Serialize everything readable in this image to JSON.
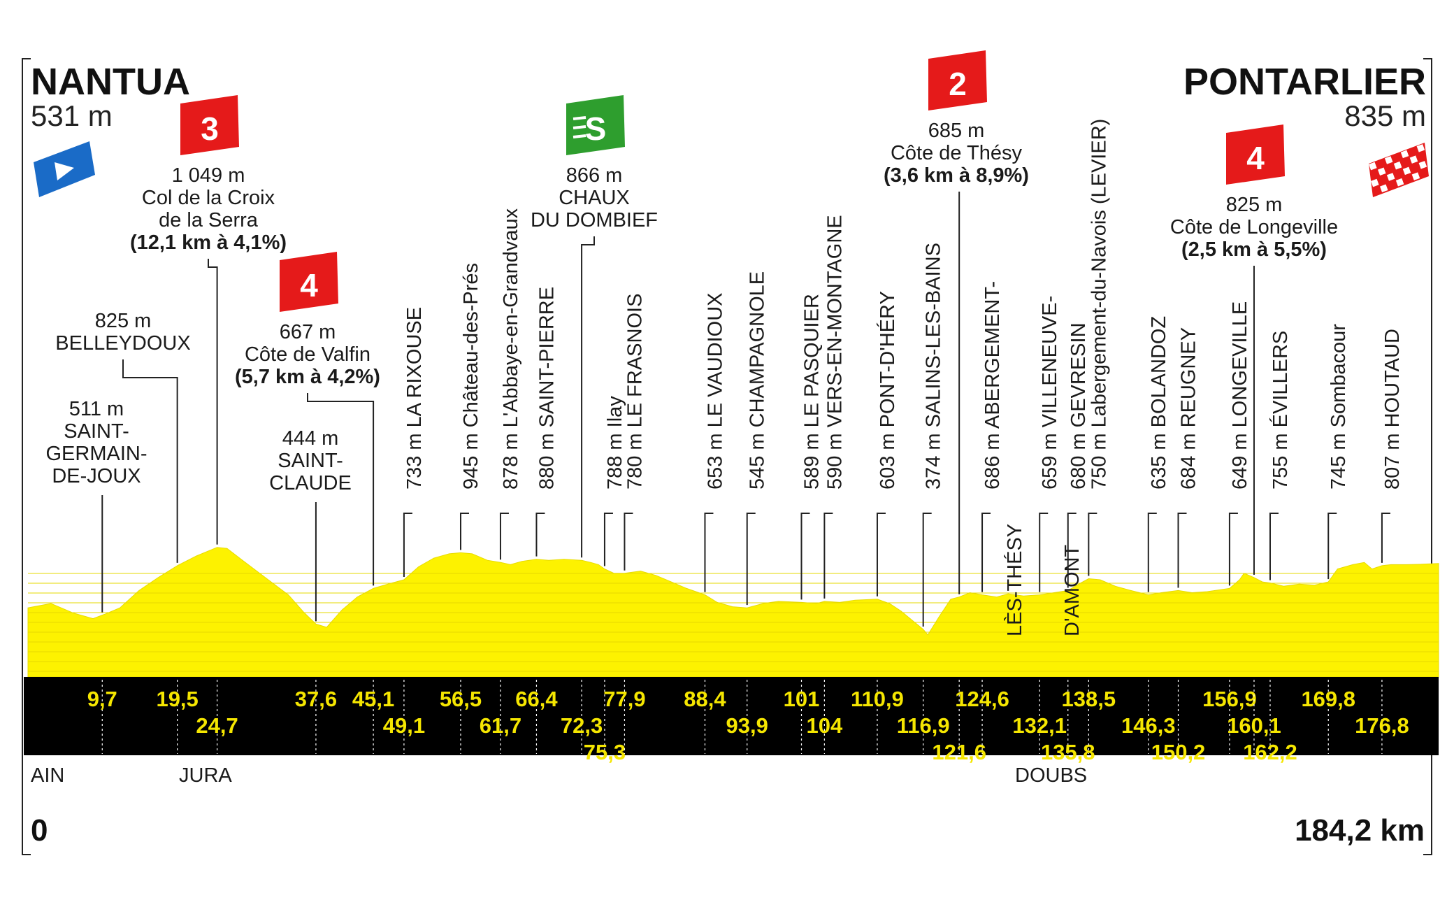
{
  "chart_data": {
    "type": "area",
    "start": {
      "name": "NANTUA",
      "altitude": "531 m"
    },
    "finish": {
      "name": "PONTARLIER",
      "altitude": "835 m"
    },
    "distance_start": "0",
    "distance_total": "184,2 km",
    "x_max_km": 184.2,
    "y_range_m": [
      200,
      1100
    ],
    "profile": [
      [
        0,
        520
      ],
      [
        3,
        540
      ],
      [
        6,
        495
      ],
      [
        8.5,
        470
      ],
      [
        10,
        490
      ],
      [
        12,
        520
      ],
      [
        14.5,
        600
      ],
      [
        17,
        660
      ],
      [
        19.5,
        715
      ],
      [
        22,
        760
      ],
      [
        24.7,
        800
      ],
      [
        26,
        795
      ],
      [
        28,
        740
      ],
      [
        31,
        660
      ],
      [
        34,
        580
      ],
      [
        36,
        500
      ],
      [
        37.6,
        445
      ],
      [
        39,
        430
      ],
      [
        41,
        510
      ],
      [
        43,
        570
      ],
      [
        45.1,
        610
      ],
      [
        47,
        630
      ],
      [
        49.1,
        650
      ],
      [
        51,
        710
      ],
      [
        53,
        750
      ],
      [
        55,
        770
      ],
      [
        56.5,
        775
      ],
      [
        58,
        770
      ],
      [
        60,
        740
      ],
      [
        61.7,
        730
      ],
      [
        63,
        720
      ],
      [
        64.5,
        735
      ],
      [
        66.4,
        745
      ],
      [
        68,
        740
      ],
      [
        70,
        745
      ],
      [
        72.3,
        740
      ],
      [
        73.5,
        730
      ],
      [
        74.5,
        720
      ],
      [
        75.3,
        700
      ],
      [
        76.5,
        680
      ],
      [
        77.9,
        680
      ],
      [
        80,
        690
      ],
      [
        82,
        670
      ],
      [
        84,
        640
      ],
      [
        86,
        610
      ],
      [
        88.4,
        580
      ],
      [
        90,
        545
      ],
      [
        92,
        525
      ],
      [
        93.9,
        520
      ],
      [
        96,
        540
      ],
      [
        98,
        550
      ],
      [
        101,
        545
      ],
      [
        103,
        540
      ],
      [
        104,
        550
      ],
      [
        106,
        545
      ],
      [
        108,
        555
      ],
      [
        110.9,
        560
      ],
      [
        112.5,
        540
      ],
      [
        114,
        505
      ],
      [
        116.9,
        420
      ],
      [
        117.5,
        395
      ],
      [
        119,
        480
      ],
      [
        120.5,
        560
      ],
      [
        121.6,
        570
      ],
      [
        123,
        590
      ],
      [
        124.6,
        580
      ],
      [
        126.5,
        570
      ],
      [
        128,
        585
      ],
      [
        130,
        575
      ],
      [
        132.1,
        580
      ],
      [
        134,
        590
      ],
      [
        135.8,
        600
      ],
      [
        137.2,
        630
      ],
      [
        138.5,
        655
      ],
      [
        140,
        650
      ],
      [
        142,
        620
      ],
      [
        144,
        600
      ],
      [
        146.3,
        580
      ],
      [
        148,
        590
      ],
      [
        150.2,
        600
      ],
      [
        152,
        590
      ],
      [
        154,
        595
      ],
      [
        156.9,
        610
      ],
      [
        158.2,
        650
      ],
      [
        158.8,
        680
      ],
      [
        160.1,
        660
      ],
      [
        161.2,
        640
      ],
      [
        162.2,
        635
      ],
      [
        164,
        620
      ],
      [
        166,
        630
      ],
      [
        168,
        625
      ],
      [
        169.8,
        640
      ],
      [
        171,
        700
      ],
      [
        173,
        720
      ],
      [
        174.5,
        730
      ],
      [
        175.5,
        700
      ],
      [
        176.8,
        715
      ],
      [
        178,
        720
      ],
      [
        180,
        720
      ],
      [
        182,
        722
      ],
      [
        184.2,
        725
      ]
    ],
    "distance_labels": [
      {
        "km": 9.7,
        "label": "9,7",
        "row": 0
      },
      {
        "km": 19.5,
        "label": "19,5",
        "row": 0
      },
      {
        "km": 24.7,
        "label": "24,7",
        "row": 1
      },
      {
        "km": 37.6,
        "label": "37,6",
        "row": 0
      },
      {
        "km": 45.1,
        "label": "45,1",
        "row": 0
      },
      {
        "km": 49.1,
        "label": "49,1",
        "row": 1
      },
      {
        "km": 56.5,
        "label": "56,5",
        "row": 0
      },
      {
        "km": 61.7,
        "label": "61,7",
        "row": 1
      },
      {
        "km": 66.4,
        "label": "66,4",
        "row": 0
      },
      {
        "km": 72.3,
        "label": "72,3",
        "row": 1
      },
      {
        "km": 75.3,
        "label": "75,3",
        "row": 2
      },
      {
        "km": 77.9,
        "label": "77,9",
        "row": 0
      },
      {
        "km": 88.4,
        "label": "88,4",
        "row": 0
      },
      {
        "km": 93.9,
        "label": "93,9",
        "row": 1
      },
      {
        "km": 101,
        "label": "101",
        "row": 0
      },
      {
        "km": 104,
        "label": "104",
        "row": 1
      },
      {
        "km": 110.9,
        "label": "110,9",
        "row": 0
      },
      {
        "km": 116.9,
        "label": "116,9",
        "row": 1
      },
      {
        "km": 121.6,
        "label": "121,6",
        "row": 2
      },
      {
        "km": 124.6,
        "label": "124,6",
        "row": 0
      },
      {
        "km": 132.1,
        "label": "132,1",
        "row": 1
      },
      {
        "km": 135.8,
        "label": "135,8",
        "row": 2
      },
      {
        "km": 138.5,
        "label": "138,5",
        "row": 0
      },
      {
        "km": 146.3,
        "label": "146,3",
        "row": 1
      },
      {
        "km": 150.2,
        "label": "150,2",
        "row": 2
      },
      {
        "km": 156.9,
        "label": "156,9",
        "row": 0
      },
      {
        "km": 160.1,
        "label": "160,1",
        "row": 1
      },
      {
        "km": 162.2,
        "label": "162,2",
        "row": 2
      },
      {
        "km": 169.8,
        "label": "169,8",
        "row": 0
      },
      {
        "km": 176.8,
        "label": "176,8",
        "row": 1
      }
    ],
    "vertical_places": [
      {
        "km": 49.1,
        "alt": "733 m",
        "name": "LA RIXOUSE"
      },
      {
        "km": 56.5,
        "alt": "945 m",
        "name": "Château-des-Prés"
      },
      {
        "km": 61.7,
        "alt": "878 m",
        "name": "L'Abbaye-en-Grandvaux"
      },
      {
        "km": 66.4,
        "alt": "880 m",
        "name": "SAINT-PIERRE"
      },
      {
        "km": 75.3,
        "alt": "788 m",
        "name": "Ilay"
      },
      {
        "km": 77.9,
        "alt": "780 m",
        "name": "LE FRASNOIS"
      },
      {
        "km": 88.4,
        "alt": "653 m",
        "name": "LE VAUDIOUX"
      },
      {
        "km": 93.9,
        "alt": "545 m",
        "name": "CHAMPAGNOLE"
      },
      {
        "km": 101,
        "alt": "589 m",
        "name": "LE PASQUIER"
      },
      {
        "km": 104,
        "alt": "590 m",
        "name": "VERS-EN-MONTAGNE"
      },
      {
        "km": 110.9,
        "alt": "603 m",
        "name": "PONT-D'HÉRY"
      },
      {
        "km": 116.9,
        "alt": "374 m",
        "name": "SALINS-LES-BAINS"
      },
      {
        "km": 124.6,
        "alt": "686 m",
        "name": "ABERGEMENT-",
        "name2": "LÈS-THÉSY"
      },
      {
        "km": 132.1,
        "alt": "659 m",
        "name": "VILLENEUVE-",
        "name2": "D'AMONT"
      },
      {
        "km": 135.8,
        "alt": "680 m",
        "name": "GEVRESIN"
      },
      {
        "km": 138.5,
        "alt": "750 m",
        "name": "Labergement-du-Navois (LEVIER)"
      },
      {
        "km": 146.3,
        "alt": "635 m",
        "name": "BOLANDOZ"
      },
      {
        "km": 150.2,
        "alt": "684 m",
        "name": "REUGNEY"
      },
      {
        "km": 156.9,
        "alt": "649 m",
        "name": "LONGEVILLE"
      },
      {
        "km": 162.2,
        "alt": "755 m",
        "name": "ÉVILLERS"
      },
      {
        "km": 169.8,
        "alt": "745 m",
        "name": "Sombacour"
      },
      {
        "km": 176.8,
        "alt": "807 m",
        "name": "HOUTAUD"
      }
    ],
    "horizontal_places": [
      {
        "km": 9.7,
        "lines": [
          "511 m",
          "SAINT-",
          "GERMAIN-",
          "DE-JOUX"
        ]
      },
      {
        "km": 19.5,
        "lines": [
          "825 m",
          "BELLEYDOUX"
        ]
      },
      {
        "km": 37.6,
        "lines": [
          "444 m",
          "SAINT-",
          "CLAUDE"
        ]
      }
    ],
    "climbs": [
      {
        "km": 24.7,
        "category": "3",
        "type": "climb",
        "alt": "1 049 m",
        "name": [
          "Col de la Croix",
          "de la Serra"
        ],
        "stats": "(12,1 km à 4,1%)"
      },
      {
        "km": 45.1,
        "category": "4",
        "type": "climb",
        "alt": "667 m",
        "name": [
          "Côte de Valfin"
        ],
        "stats": "(5,7 km à 4,2%)"
      },
      {
        "km": 72.3,
        "category": "S",
        "type": "sprint",
        "alt": "866 m",
        "name": [
          "CHAUX",
          "DU DOMBIEF"
        ],
        "stats": ""
      },
      {
        "km": 121.6,
        "category": "2",
        "type": "climb",
        "alt": "685 m",
        "name": [
          "Côte de Thésy"
        ],
        "stats": "(3,6 km à 8,9%)"
      },
      {
        "km": 160.1,
        "category": "4",
        "type": "climb",
        "alt": "825 m",
        "name": [
          "Côte de Longeville"
        ],
        "stats": "(2,5 km à 5,5%)"
      }
    ],
    "regions": [
      {
        "km": 0,
        "name": "AIN"
      },
      {
        "km": 24.7,
        "name": "JURA"
      },
      {
        "km": 135.8,
        "name": "DOUBS"
      }
    ],
    "colors": {
      "profile": "#fdf200",
      "band": "#000000",
      "label": "#f5e600",
      "climb": "#e51a1a",
      "sprint": "#2e9e2e",
      "start_flag": "#1a6bc7",
      "finish_flag": "#e51a1a"
    }
  }
}
